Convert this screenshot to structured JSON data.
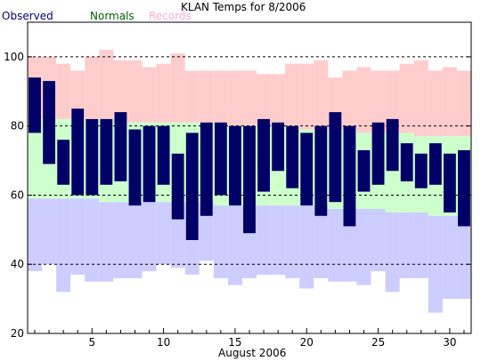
{
  "chart_data": {
    "type": "bar",
    "title": "KLAN Temps for 8/2006",
    "xlabel": "August 2006",
    "ylabel": "",
    "xlim": [
      0.5,
      31.5
    ],
    "ylim": [
      20,
      110
    ],
    "yticks": [
      20,
      40,
      60,
      80,
      100
    ],
    "xticks": [
      5,
      10,
      15,
      20,
      25,
      30
    ],
    "grid": "dashed horizontal at 40, 60, 80, 100",
    "legend": [
      "Observed",
      "Normals",
      "Records"
    ],
    "colors": {
      "observed": "#000066",
      "normals": "#ccffcc",
      "records_high": "#ffcccc",
      "records_low": "#ccccff",
      "legend_observed": "#000080",
      "legend_normals": "#006400",
      "legend_records": "#ffaad4"
    },
    "days": [
      1,
      2,
      3,
      4,
      5,
      6,
      7,
      8,
      9,
      10,
      11,
      12,
      13,
      14,
      15,
      16,
      17,
      18,
      19,
      20,
      21,
      22,
      23,
      24,
      25,
      26,
      27,
      28,
      29,
      30,
      31
    ],
    "observed_high": [
      94,
      93,
      76,
      85,
      82,
      82,
      84,
      79,
      80,
      80,
      72,
      78,
      81,
      81,
      80,
      80,
      82,
      81,
      80,
      78,
      80,
      84,
      80,
      73,
      81,
      82,
      75,
      72,
      75,
      72,
      73
    ],
    "observed_low": [
      78,
      69,
      63,
      60,
      60,
      63,
      64,
      57,
      58,
      63,
      53,
      47,
      54,
      60,
      57,
      49,
      61,
      67,
      62,
      57,
      54,
      58,
      51,
      61,
      63,
      67,
      64,
      62,
      63,
      55,
      51
    ],
    "normal_high": [
      82,
      82,
      82,
      82,
      82,
      82,
      81,
      81,
      81,
      81,
      81,
      81,
      81,
      80,
      80,
      80,
      80,
      80,
      80,
      79,
      79,
      79,
      79,
      78,
      78,
      78,
      78,
      77,
      77,
      77,
      77
    ],
    "normal_low": [
      59,
      59,
      59,
      59,
      59,
      58,
      58,
      58,
      58,
      58,
      58,
      58,
      58,
      57,
      57,
      57,
      57,
      57,
      57,
      57,
      57,
      56,
      56,
      56,
      56,
      55,
      55,
      55,
      54,
      54,
      54
    ],
    "record_high": [
      100,
      100,
      98,
      96,
      100,
      102,
      99,
      99,
      97,
      98,
      101,
      96,
      96,
      96,
      96,
      96,
      95,
      95,
      98,
      98,
      99,
      94,
      96,
      97,
      96,
      96,
      98,
      99,
      96,
      97,
      96
    ],
    "record_low": [
      38,
      40,
      32,
      37,
      35,
      35,
      36,
      36,
      38,
      40,
      39,
      37,
      41,
      36,
      34,
      36,
      37,
      37,
      36,
      33,
      36,
      35,
      35,
      34,
      38,
      32,
      36,
      36,
      26,
      30,
      30
    ]
  }
}
